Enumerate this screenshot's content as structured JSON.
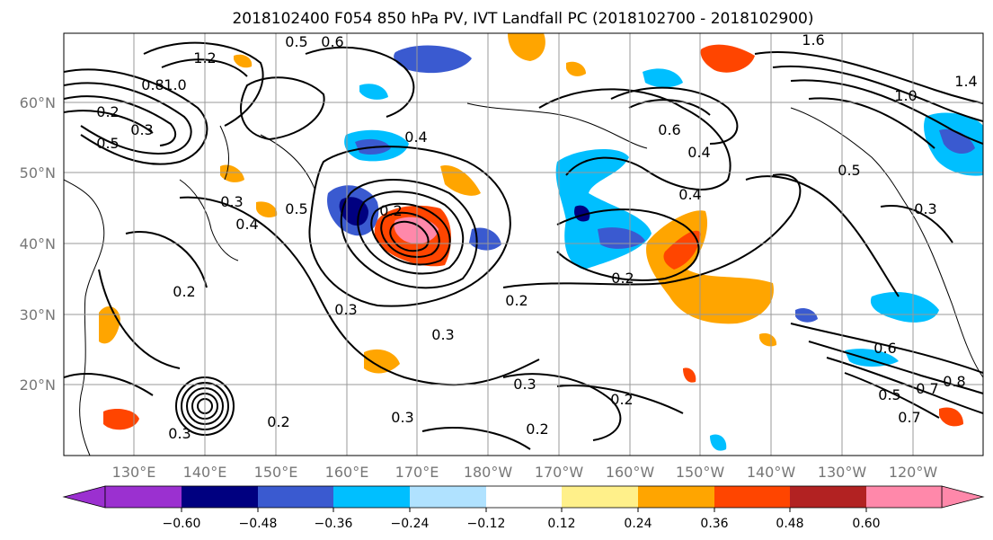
{
  "title": "2018102400 F054 850 hPa PV, IVT Landfall PC (2018102700 - 2018102900)",
  "map": {
    "lat_labels": [
      "60°N",
      "50°N",
      "40°N",
      "30°N",
      "20°N"
    ],
    "lon_labels": [
      "130°E",
      "140°E",
      "150°E",
      "160°E",
      "170°E",
      "180°W",
      "170°W",
      "160°W",
      "150°W",
      "140°W",
      "130°W",
      "120°W"
    ],
    "lat_range": [
      10,
      70
    ],
    "lon_range": [
      120,
      250
    ],
    "grid": true
  },
  "contour_labels": [
    "0.5",
    "0.6",
    "1.2",
    "1.0",
    "0.8",
    "0.2",
    "0.3",
    "0.5",
    "0.4",
    "0.5",
    "0.4",
    "0.3",
    "0.2",
    "0.3",
    "0.2",
    "0.3",
    "0.2",
    "0.3",
    "0.2",
    "0.2",
    "0.2",
    "0.3",
    "0.4",
    "0.6",
    "0.4",
    "1.6",
    "1.0",
    "1.4",
    "0.5",
    "0.3",
    "0.6",
    "0.8",
    "0.7",
    "0.5",
    "0.7",
    "0.3",
    "0.2"
  ],
  "colorbar": {
    "ticks": [
      "−0.60",
      "−0.48",
      "−0.36",
      "−0.24",
      "−0.12",
      "0.12",
      "0.24",
      "0.36",
      "0.48",
      "0.60"
    ],
    "colors": [
      "#9b30d0",
      "#000080",
      "#3a5ad0",
      "#00bfff",
      "#b0e2ff",
      "#ffffff",
      "#fff08a",
      "#ffa500",
      "#ff4500",
      "#b22222",
      "#ff88aa"
    ]
  },
  "colors": {
    "neg_strong": "#000080",
    "neg_mid": "#3a5ad0",
    "neg_weak": "#00bfff",
    "neg_light": "#b0e2ff",
    "pos_light": "#fff08a",
    "pos_mid": "#ffa500",
    "pos_strong": "#ff4500",
    "pos_dark": "#b22222",
    "pos_max": "#ff88aa",
    "neg_max": "#9b30d0"
  }
}
